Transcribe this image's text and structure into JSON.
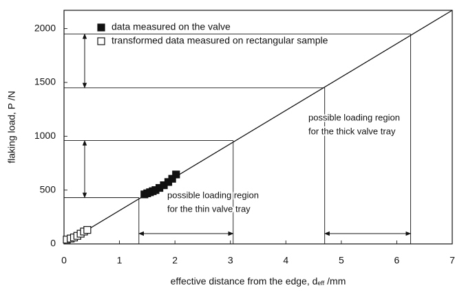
{
  "chart_data": {
    "type": "scatter",
    "xlabel": "effective distance from the edge,  d",
    "xlabel_sub": "eff",
    "xlabel_unit": " /mm",
    "ylabel": "flaking load,   P /N",
    "xlim": [
      0,
      7
    ],
    "ylim": [
      0,
      2170
    ],
    "xticks": [
      0,
      1,
      2,
      3,
      4,
      5,
      6,
      7
    ],
    "yticks": [
      0,
      500,
      1000,
      1500,
      2000
    ],
    "series": [
      {
        "name": "data measured on the valve",
        "color": "#111111",
        "marker": "filled",
        "x": [
          1.45,
          1.5,
          1.55,
          1.6,
          1.65,
          1.72,
          1.8,
          1.88,
          1.95,
          2.02
        ],
        "values": [
          460,
          470,
          480,
          490,
          500,
          520,
          545,
          575,
          605,
          645
        ]
      },
      {
        "name": "transformed data measured on rectangular sample",
        "color": "#111111",
        "marker": "open",
        "x": [
          0.05,
          0.12,
          0.18,
          0.24,
          0.3,
          0.36,
          0.42
        ],
        "values": [
          40,
          50,
          60,
          75,
          95,
          115,
          130
        ]
      }
    ],
    "fit": {
      "x": [
        0,
        7
      ],
      "y": [
        0,
        2170
      ]
    },
    "reference_lines": [
      {
        "x": 1.35,
        "y": 430
      },
      {
        "x": 3.05,
        "y": 960
      },
      {
        "x": 4.7,
        "y": 1450
      },
      {
        "x": 6.25,
        "y": 1950
      }
    ],
    "annotations": [
      {
        "lines": [
          "possible loading region",
          "for the thin valve tray"
        ]
      },
      {
        "lines": [
          "possible loading region",
          "for the thick valve tray"
        ]
      }
    ]
  }
}
